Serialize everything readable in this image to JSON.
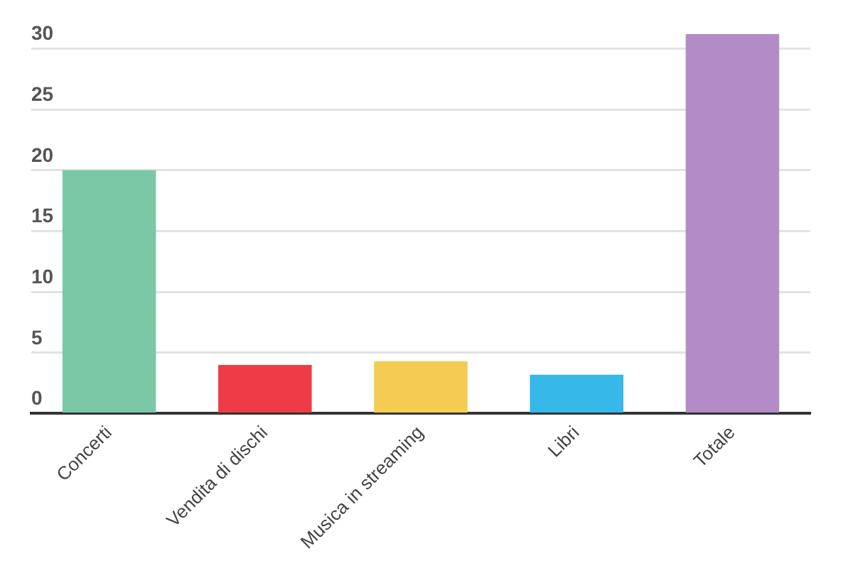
{
  "chart_data": {
    "type": "bar",
    "categories": [
      "Concerti",
      "Vendita di dischi",
      "Musica in streaming",
      "Libri",
      "Totale"
    ],
    "values": [
      20,
      4,
      4.3,
      3.2,
      31.2
    ],
    "colors": [
      "#7ac8a5",
      "#ef3a47",
      "#f5cb52",
      "#36b8e9",
      "#b28bc7"
    ],
    "ylim": [
      0,
      34
    ],
    "yticks": [
      0,
      5,
      10,
      15,
      20,
      25,
      30
    ],
    "grid": "y",
    "legend": false
  }
}
